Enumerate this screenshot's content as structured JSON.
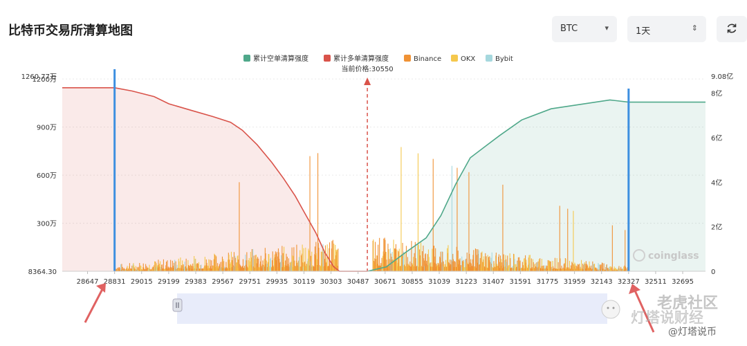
{
  "page": {
    "title": "比特币交易所清算地图",
    "coin_select": {
      "value": "BTC",
      "icon": "caret-down-icon"
    },
    "range_select": {
      "value": "1天",
      "icon": "up-down-arrows-icon"
    },
    "refresh_icon": "refresh-icon",
    "scroll_handle_icon": "pause-bars-icon"
  },
  "watermarks": {
    "brand": "coinglass",
    "community": "老虎社区",
    "wechat_name": "灯塔说财经",
    "handle": "@灯塔说币"
  },
  "chart_data": {
    "type": "bar",
    "title": "",
    "current_price_label": "当前价格:30550",
    "current_price": 30550,
    "legend": [
      {
        "name": "累计空单清算强度",
        "color": "#4fa88a"
      },
      {
        "name": "累计多单清算强度",
        "color": "#d9534a"
      },
      {
        "name": "Binance",
        "color": "#f09235"
      },
      {
        "name": "OKX",
        "color": "#f5c84d"
      },
      {
        "name": "Bybit",
        "color": "#a6d8de"
      }
    ],
    "x_ticks": [
      28647,
      28831,
      29015,
      29199,
      29383,
      29567,
      29751,
      29935,
      30119,
      30303,
      30487,
      30671,
      30855,
      31039,
      31223,
      31407,
      31591,
      31775,
      31959,
      32143,
      32327,
      32511,
      32695
    ],
    "x_range": [
      28475,
      32850
    ],
    "y_left": {
      "ticks": [
        "8364.30",
        "300万",
        "600万",
        "900万",
        "1200万",
        "1260.77万"
      ],
      "range": [
        8364.3,
        12607700
      ]
    },
    "y_right": {
      "ticks": [
        "0",
        "2亿",
        "4亿",
        "6亿",
        "8亿",
        "9.08亿"
      ],
      "range": [
        0,
        908000000
      ]
    },
    "grid": true,
    "legend_position": "top-center",
    "cumulative_long": [
      [
        28475,
        11450000
      ],
      [
        28831,
        11450000
      ],
      [
        28950,
        11250000
      ],
      [
        29100,
        10900000
      ],
      [
        29200,
        10450000
      ],
      [
        29350,
        10050000
      ],
      [
        29500,
        9650000
      ],
      [
        29620,
        9300000
      ],
      [
        29700,
        8800000
      ],
      [
        29800,
        7900000
      ],
      [
        29900,
        6800000
      ],
      [
        29980,
        5800000
      ],
      [
        30060,
        4700000
      ],
      [
        30120,
        3700000
      ],
      [
        30200,
        2400000
      ],
      [
        30260,
        1200000
      ],
      [
        30320,
        300000
      ],
      [
        30360,
        8364.3
      ],
      [
        30550,
        8364.3
      ]
    ],
    "cumulative_short": [
      [
        30550,
        0
      ],
      [
        30680,
        20000000
      ],
      [
        30800,
        80000000
      ],
      [
        30950,
        150000000
      ],
      [
        31050,
        250000000
      ],
      [
        31150,
        390000000
      ],
      [
        31250,
        510000000
      ],
      [
        31350,
        560000000
      ],
      [
        31450,
        610000000
      ],
      [
        31600,
        680000000
      ],
      [
        31800,
        730000000
      ],
      [
        32000,
        750000000
      ],
      [
        32200,
        770000000
      ],
      [
        32327,
        760000000
      ],
      [
        32850,
        760000000
      ]
    ],
    "range_markers": [
      28831,
      32327
    ]
  }
}
